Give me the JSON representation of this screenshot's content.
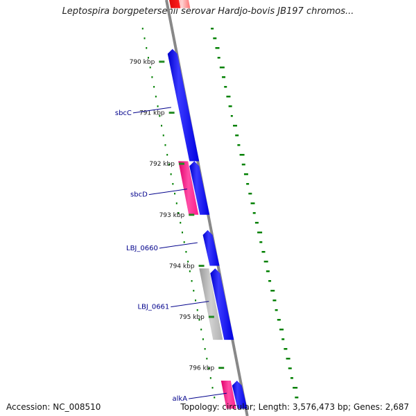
{
  "title": "Leptospira borgpetersenii serovar Hardjo-bovis JB197 chromos...",
  "accession": "Accession: NC_008510",
  "summary": "Topology: circular; Length: 3,576,473 bp; Genes: 2,687",
  "ticks": [
    {
      "label": "790 kbp",
      "kbp": 790
    },
    {
      "label": "791 kbp",
      "kbp": 791
    },
    {
      "label": "792 kbp",
      "kbp": 792
    },
    {
      "label": "793 kbp",
      "kbp": 793
    },
    {
      "label": "794 kbp",
      "kbp": 794
    },
    {
      "label": "795 kbp",
      "kbp": 795
    },
    {
      "label": "796 kbp",
      "kbp": 796
    }
  ],
  "genes": [
    {
      "name": "sbcC",
      "start_kbp": 789.75,
      "end_kbp": 791.95,
      "strand": "forward",
      "track": "inner",
      "color": "#0000ff"
    },
    {
      "name": "sbcD",
      "start_kbp": 791.95,
      "end_kbp": 793.0,
      "strand": "forward",
      "track": "inner",
      "color": "#0000ff"
    },
    {
      "name": "LBJ_0660",
      "start_kbp": 793.3,
      "end_kbp": 794.0,
      "strand": "forward",
      "track": "inner",
      "color": "#0000ff"
    },
    {
      "name": "LBJ_0661",
      "start_kbp": 794.05,
      "end_kbp": 795.45,
      "strand": "forward",
      "track": "inner",
      "color": "#0000ff"
    },
    {
      "name": "alkA",
      "start_kbp": 796.25,
      "end_kbp": 796.8,
      "strand": "forward",
      "track": "inner",
      "color": "#0000ff"
    }
  ],
  "features": [
    {
      "start_kbp": 789.05,
      "end_kbp": 789.2,
      "track": "outer",
      "color": "#ff0000"
    },
    {
      "start_kbp": 789.05,
      "end_kbp": 789.2,
      "track": "backbone-right",
      "color": "#ff8080"
    },
    {
      "start_kbp": 791.95,
      "end_kbp": 793.0,
      "track": "outer",
      "color": "#ff1a8c"
    },
    {
      "start_kbp": 794.05,
      "end_kbp": 795.45,
      "track": "outer",
      "color": "#b3b3b3"
    },
    {
      "start_kbp": 796.25,
      "end_kbp": 796.8,
      "track": "outer",
      "color": "#ff1a8c"
    }
  ],
  "labels": [
    {
      "text": "sbcC",
      "gene": "sbcC"
    },
    {
      "text": "sbcD",
      "gene": "sbcD"
    },
    {
      "text": "LBJ_0660",
      "gene": "LBJ_0660"
    },
    {
      "text": "LBJ_0661",
      "gene": "LBJ_0661"
    },
    {
      "text": "alkA",
      "gene": "alkA"
    }
  ],
  "colors": {
    "forward_gene": "#0000ff",
    "backbone": "#888888",
    "tick": "#228b22",
    "gc_dots": "#008000",
    "label": "#00008b"
  }
}
